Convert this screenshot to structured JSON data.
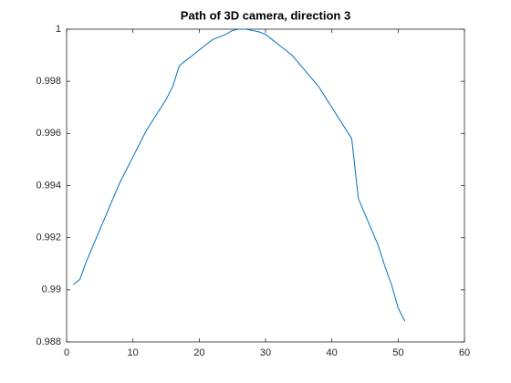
{
  "chart_data": {
    "type": "line",
    "title": "Path of 3D camera, direction 3",
    "x": [
      1,
      2,
      3,
      4,
      5,
      6,
      7,
      8,
      9,
      10,
      11,
      12,
      13,
      14,
      15,
      16,
      17,
      18,
      19,
      20,
      21,
      22,
      23,
      24,
      25,
      26,
      27,
      28,
      29,
      30,
      31,
      32,
      33,
      34,
      35,
      36,
      37,
      38,
      39,
      40,
      41,
      42,
      43,
      44,
      45,
      46,
      47,
      48,
      49,
      50,
      51
    ],
    "series": [
      {
        "color": "#0072bd",
        "values": [
          0.9902,
          0.9904,
          0.9911,
          0.9917,
          0.9923,
          0.9929,
          0.9935,
          0.9941,
          0.9946,
          0.9951,
          0.9956,
          0.9961,
          0.9965,
          0.9969,
          0.9973,
          0.9978,
          0.9986,
          0.9988,
          0.999,
          0.9992,
          0.9994,
          0.9996,
          0.9997,
          0.9998,
          0.99995,
          1,
          1,
          0.99995,
          0.9999,
          0.9998,
          0.9996,
          0.9994,
          0.9992,
          0.999,
          0.9987,
          0.9984,
          0.9981,
          0.9978,
          0.9974,
          0.997,
          0.9966,
          0.9962,
          0.9958,
          0.9935,
          0.9929,
          0.9923,
          0.9917,
          0.9909,
          0.9902,
          0.9893,
          0.9888
        ]
      }
    ],
    "xlim": [
      0,
      60
    ],
    "xticks": [
      0,
      10,
      20,
      30,
      40,
      50,
      60
    ],
    "ylim": [
      0.988,
      1
    ],
    "yticks": [
      0.988,
      0.99,
      0.992,
      0.994,
      0.996,
      0.998,
      1
    ]
  }
}
